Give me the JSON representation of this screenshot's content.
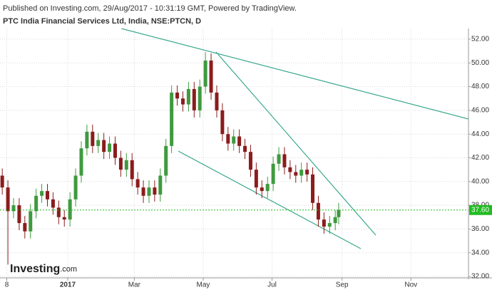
{
  "chart_data": {
    "type": "candlestick",
    "header": "Published on Investing.com, 29/Aug/2017 - 10:31:19 GMT, Powered by TradingView.",
    "title": "PTC India Financial Services Ltd, India, NSE:PTCN, D",
    "logo": "Investing",
    "logo_suffix": ".com",
    "x": [
      "2016-11-04",
      "2016-11-09",
      "2016-11-14",
      "2016-11-19",
      "2016-11-24",
      "2016-11-29",
      "2016-12-04",
      "2016-12-09",
      "2016-12-14",
      "2016-12-19",
      "2016-12-24",
      "2016-12-29",
      "2017-01-03",
      "2017-01-08",
      "2017-01-13",
      "2017-01-18",
      "2017-01-23",
      "2017-01-28",
      "2017-02-02",
      "2017-02-07",
      "2017-02-12",
      "2017-02-17",
      "2017-02-22",
      "2017-02-27",
      "2017-03-04",
      "2017-03-09",
      "2017-03-14",
      "2017-03-19",
      "2017-03-24",
      "2017-03-29",
      "2017-04-03",
      "2017-04-08",
      "2017-04-13",
      "2017-04-18",
      "2017-04-23",
      "2017-04-28",
      "2017-05-03",
      "2017-05-08",
      "2017-05-13",
      "2017-05-18",
      "2017-05-23",
      "2017-05-28",
      "2017-06-02",
      "2017-06-07",
      "2017-06-12",
      "2017-06-17",
      "2017-06-22",
      "2017-06-27",
      "2017-07-02",
      "2017-07-07",
      "2017-07-12",
      "2017-07-17",
      "2017-07-22",
      "2017-07-27",
      "2017-08-01",
      "2017-08-06",
      "2017-08-11",
      "2017-08-16",
      "2017-08-21",
      "2017-08-26",
      "2017-08-29"
    ],
    "open": [
      40.5,
      39.5,
      37.5,
      38.0,
      36.5,
      35.8,
      37.5,
      38.8,
      39.2,
      38.5,
      37.8,
      37.0,
      36.8,
      38.5,
      40.5,
      42.8,
      44.2,
      43.0,
      43.5,
      42.5,
      43.2,
      42.0,
      41.0,
      41.8,
      40.2,
      39.5,
      38.8,
      39.5,
      38.9,
      40.5,
      43.0,
      47.5,
      47.0,
      46.5,
      47.8,
      46.0,
      48.0,
      50.2,
      47.5,
      46.0,
      44.0,
      43.2,
      43.8,
      43.0,
      42.5,
      41.0,
      39.5,
      39.2,
      39.8,
      41.5,
      42.3,
      41.2,
      40.8,
      40.5,
      41.0,
      40.6,
      38.2,
      36.8,
      36.2,
      36.5,
      37.0
    ],
    "high": [
      41.1,
      40.1,
      38.6,
      38.6,
      37.1,
      38.1,
      39.4,
      39.8,
      39.8,
      39.1,
      38.4,
      37.6,
      39.1,
      41.1,
      43.4,
      44.8,
      44.8,
      44.1,
      44.1,
      43.8,
      43.8,
      42.6,
      42.4,
      42.4,
      40.8,
      40.1,
      40.1,
      40.1,
      41.1,
      43.6,
      48.1,
      48.1,
      47.6,
      48.4,
      48.4,
      48.6,
      50.9,
      50.8,
      48.1,
      46.6,
      44.6,
      44.4,
      44.4,
      43.6,
      43.1,
      41.6,
      40.1,
      40.4,
      42.1,
      42.9,
      42.9,
      41.8,
      41.4,
      41.6,
      41.6,
      41.2,
      38.8,
      37.4,
      37.1,
      37.6,
      38.2
    ],
    "low": [
      38.9,
      33.0,
      36.9,
      35.9,
      35.2,
      35.2,
      36.9,
      38.2,
      37.9,
      37.2,
      36.4,
      36.2,
      36.2,
      37.9,
      39.9,
      42.2,
      42.4,
      42.4,
      41.9,
      41.9,
      41.4,
      40.4,
      40.4,
      39.6,
      38.9,
      38.2,
      38.2,
      38.3,
      38.3,
      39.9,
      42.4,
      46.4,
      45.9,
      45.9,
      45.4,
      45.4,
      47.4,
      46.9,
      45.4,
      43.4,
      42.6,
      42.6,
      42.4,
      41.9,
      40.4,
      38.9,
      38.6,
      38.6,
      39.2,
      40.9,
      40.6,
      40.2,
      39.9,
      39.9,
      40.0,
      37.6,
      36.2,
      35.6,
      35.6,
      35.9,
      36.4
    ],
    "close": [
      39.5,
      37.5,
      38.0,
      36.5,
      35.8,
      37.5,
      38.8,
      39.2,
      38.5,
      37.8,
      37.0,
      36.8,
      38.5,
      40.5,
      42.8,
      44.2,
      43.0,
      43.5,
      42.5,
      43.2,
      42.0,
      41.0,
      41.8,
      40.2,
      39.5,
      38.8,
      39.5,
      38.9,
      40.5,
      43.0,
      47.5,
      47.0,
      46.5,
      47.8,
      46.0,
      48.0,
      50.2,
      47.5,
      46.0,
      44.0,
      43.2,
      43.8,
      43.0,
      42.5,
      41.0,
      39.5,
      39.2,
      39.8,
      41.5,
      42.3,
      41.2,
      40.8,
      40.5,
      41.0,
      40.6,
      38.2,
      36.8,
      36.2,
      36.5,
      37.0,
      37.6
    ],
    "up_color": "#3f9a3f",
    "down_color": "#8b1c1c",
    "last_price": {
      "value": 37.6,
      "label": "37.60"
    },
    "last_color": "#22bb22",
    "xlim": [
      "2016-11-02",
      "2017-12-22"
    ],
    "xticks": [
      {
        "value": "2016-11-08",
        "label": "8"
      },
      {
        "value": "2017-01-01",
        "label": "2017"
      },
      {
        "value": "2017-03-01",
        "label": "Mar"
      },
      {
        "value": "2017-05-01",
        "label": "May"
      },
      {
        "value": "2017-07-01",
        "label": "Jul"
      },
      {
        "value": "2017-09-01",
        "label": "Sep"
      },
      {
        "value": "2017-11-01",
        "label": "Nov"
      }
    ],
    "ylim": [
      32,
      52.9
    ],
    "yticks": [
      {
        "value": 32,
        "label": "32.00"
      },
      {
        "value": 34,
        "label": "34.00"
      },
      {
        "value": 36,
        "label": "36.00"
      },
      {
        "value": 38,
        "label": "38.00"
      },
      {
        "value": 40,
        "label": "40.00"
      },
      {
        "value": 42,
        "label": "42.00"
      },
      {
        "value": 44,
        "label": "44.00"
      },
      {
        "value": 46,
        "label": "46.00"
      },
      {
        "value": 48,
        "label": "48.00"
      },
      {
        "value": 50,
        "label": "50.00"
      },
      {
        "value": 52,
        "label": "52.00"
      }
    ],
    "grid": true
  }
}
